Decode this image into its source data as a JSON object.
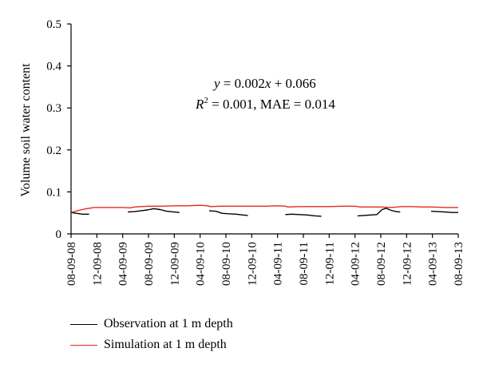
{
  "chart_data": {
    "type": "line",
    "ylabel": "Volume soil water content",
    "xlabel": "",
    "ylim": [
      0,
      0.5
    ],
    "yticks": [
      "0",
      "0.1",
      "0.2",
      "0.3",
      "0.4",
      "0.5"
    ],
    "xtick_labels": [
      "08-09-08",
      "12-09-08",
      "04-09-09",
      "08-09-09",
      "12-09-09",
      "04-09-10",
      "08-09-10",
      "12-09-10",
      "04-09-11",
      "08-09-11",
      "12-09-11",
      "04-09-12",
      "08-09-12",
      "12-09-12",
      "04-09-13",
      "08-09-13"
    ],
    "x_domain": [
      0,
      15
    ],
    "annotation": {
      "line1": {
        "y": "y",
        "eq": " = 0.002",
        "x": "x",
        "rest": " + 0.066"
      },
      "line2": {
        "r": "R",
        "sup": "2",
        "rest": " = 0.001, MAE = 0.014"
      }
    },
    "series": [
      {
        "name": "Observation at 1 m depth",
        "color": "#000000",
        "segments": [
          [
            [
              0,
              0.051
            ],
            [
              0.2,
              0.049
            ],
            [
              0.45,
              0.047
            ],
            [
              0.7,
              0.047
            ]
          ],
          [
            [
              2.2,
              0.052
            ],
            [
              2.45,
              0.053
            ],
            [
              2.7,
              0.055
            ],
            [
              2.95,
              0.057
            ],
            [
              3.2,
              0.06
            ],
            [
              3.45,
              0.058
            ],
            [
              3.7,
              0.054
            ],
            [
              4.0,
              0.052
            ],
            [
              4.2,
              0.051
            ]
          ],
          [
            [
              5.35,
              0.055
            ],
            [
              5.6,
              0.054
            ],
            [
              5.85,
              0.049
            ],
            [
              6.1,
              0.048
            ],
            [
              6.4,
              0.047
            ],
            [
              6.65,
              0.045
            ],
            [
              6.85,
              0.044
            ]
          ],
          [
            [
              8.3,
              0.046
            ],
            [
              8.55,
              0.047
            ],
            [
              8.85,
              0.046
            ],
            [
              9.15,
              0.045
            ],
            [
              9.45,
              0.043
            ],
            [
              9.7,
              0.042
            ]
          ],
          [
            [
              11.1,
              0.043
            ],
            [
              11.35,
              0.044
            ],
            [
              11.6,
              0.045
            ],
            [
              11.85,
              0.046
            ],
            [
              12.05,
              0.058
            ],
            [
              12.2,
              0.061
            ],
            [
              12.4,
              0.056
            ],
            [
              12.6,
              0.053
            ],
            [
              12.75,
              0.052
            ]
          ],
          [
            [
              13.95,
              0.054
            ],
            [
              14.2,
              0.053
            ],
            [
              14.5,
              0.052
            ],
            [
              14.75,
              0.051
            ],
            [
              15.0,
              0.051
            ]
          ]
        ]
      },
      {
        "name": "Simulation at 1 m depth",
        "color": "#e8281e",
        "segments": [
          [
            [
              0,
              0.051
            ],
            [
              0.3,
              0.056
            ],
            [
              0.6,
              0.06
            ],
            [
              0.9,
              0.063
            ],
            [
              1.5,
              0.063
            ],
            [
              2.0,
              0.063
            ],
            [
              2.3,
              0.062
            ],
            [
              2.45,
              0.064
            ],
            [
              3.0,
              0.066
            ],
            [
              3.5,
              0.066
            ],
            [
              4.0,
              0.067
            ],
            [
              4.5,
              0.067
            ],
            [
              5.0,
              0.068
            ],
            [
              5.3,
              0.067
            ],
            [
              5.4,
              0.065
            ],
            [
              5.8,
              0.066
            ],
            [
              6.5,
              0.066
            ],
            [
              7.0,
              0.066
            ],
            [
              7.5,
              0.066
            ],
            [
              8.0,
              0.067
            ],
            [
              8.3,
              0.066
            ],
            [
              8.4,
              0.064
            ],
            [
              8.8,
              0.065
            ],
            [
              9.5,
              0.065
            ],
            [
              10.0,
              0.065
            ],
            [
              10.5,
              0.066
            ],
            [
              11.0,
              0.066
            ],
            [
              11.2,
              0.064
            ],
            [
              11.6,
              0.064
            ],
            [
              12.0,
              0.064
            ],
            [
              12.4,
              0.063
            ],
            [
              12.8,
              0.065
            ],
            [
              13.2,
              0.065
            ],
            [
              13.6,
              0.064
            ],
            [
              14.0,
              0.064
            ],
            [
              14.5,
              0.063
            ],
            [
              15.0,
              0.063
            ]
          ]
        ]
      }
    ]
  }
}
